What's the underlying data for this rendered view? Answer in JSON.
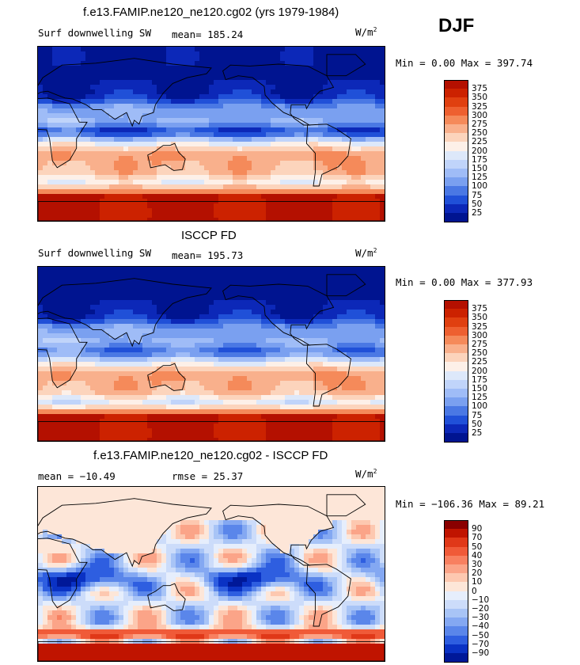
{
  "season": "DJF",
  "panels": [
    {
      "id": "model",
      "title": "f.e13.FAMIP.ne120_ne120.cg02 (yrs 1979-1984)",
      "left_label": "Surf downwelling SW",
      "stat1": "mean= 185.24",
      "stat2": "",
      "units": "W/m",
      "units_sup": "2",
      "minmax": "Min =   0.00 Max = 397.74",
      "cbar_labels": [
        "375",
        "350",
        "325",
        "300",
        "275",
        "250",
        "225",
        "200",
        "175",
        "150",
        "125",
        "100",
        "75",
        "50",
        "25"
      ],
      "cbar_colors": [
        "#b41000",
        "#cc2200",
        "#e04010",
        "#ee6030",
        "#f58a5a",
        "#f9b08c",
        "#fcd4bc",
        "#fdf0e8",
        "#dde8fa",
        "#c0d4fa",
        "#9fbcf7",
        "#7aa0f0",
        "#4a78e4",
        "#2050d8",
        "#0c28b8",
        "#001490"
      ],
      "field": "model_sw"
    },
    {
      "id": "obs",
      "title": "ISCCP FD",
      "left_label": "Surf downwelling SW",
      "stat1": "mean= 195.73",
      "stat2": "",
      "units": "W/m",
      "units_sup": "2",
      "minmax": "Min =   0.00 Max = 377.93",
      "cbar_labels": [
        "375",
        "350",
        "325",
        "300",
        "275",
        "250",
        "225",
        "200",
        "175",
        "150",
        "125",
        "100",
        "75",
        "50",
        "25"
      ],
      "cbar_colors": [
        "#b41000",
        "#cc2200",
        "#e04010",
        "#ee6030",
        "#f58a5a",
        "#f9b08c",
        "#fcd4bc",
        "#fdf0e8",
        "#dde8fa",
        "#c0d4fa",
        "#9fbcf7",
        "#7aa0f0",
        "#4a78e4",
        "#2050d8",
        "#0c28b8",
        "#001490"
      ],
      "field": "obs_sw"
    },
    {
      "id": "diff",
      "title": "f.e13.FAMIP.ne120_ne120.cg02 - ISCCP FD",
      "left_label": "mean = −10.49",
      "stat1": "",
      "stat2": "rmse =  25.37",
      "units": "W/m",
      "units_sup": "2",
      "minmax": "Min = −106.36 Max =  89.21",
      "cbar_labels": [
        "90",
        "70",
        "50",
        "40",
        "30",
        "20",
        "10",
        "0",
        "−10",
        "−20",
        "−30",
        "−40",
        "−50",
        "−70",
        "−90"
      ],
      "cbar_colors": [
        "#8a0000",
        "#c01400",
        "#e03818",
        "#f05a38",
        "#f88060",
        "#fba488",
        "#fdc8b0",
        "#fde6d8",
        "#e6eefc",
        "#ccdcfa",
        "#a8c4f6",
        "#84a8f2",
        "#5a86ea",
        "#2e5ee0",
        "#0a32c4",
        "#001898"
      ],
      "field": "diff_sw"
    }
  ]
}
